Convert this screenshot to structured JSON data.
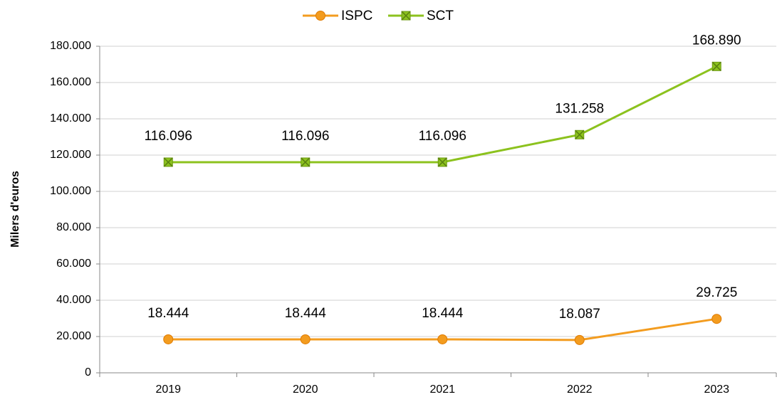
{
  "chart_data": {
    "type": "line",
    "y_label": "Milers d'euros",
    "categories": [
      "2019",
      "2020",
      "2021",
      "2022",
      "2023"
    ],
    "series": [
      {
        "name": "ISPC",
        "color": "#f39c1f",
        "marker": "circle",
        "values": [
          18444,
          18444,
          18444,
          18087,
          29725
        ],
        "value_labels": [
          "18.444",
          "18.444",
          "18.444",
          "18.087",
          "29.725"
        ]
      },
      {
        "name": "SCT",
        "color": "#8cc21e",
        "marker": "square-x",
        "values": [
          116096,
          116096,
          116096,
          131258,
          168890
        ],
        "value_labels": [
          "116.096",
          "116.096",
          "116.096",
          "131.258",
          "168.890"
        ]
      }
    ],
    "ylim": [
      0,
      180000
    ],
    "yticks": [
      0,
      {
        "value": 20000,
        "label": "20.000"
      },
      {
        "value": 40000,
        "label": "40.000"
      },
      {
        "value": 60000,
        "label": "60.000"
      },
      {
        "value": 80000,
        "label": "80.000"
      },
      {
        "value": 100000,
        "label": "100.000"
      },
      {
        "value": 120000,
        "label": "120.000"
      },
      {
        "value": 140000,
        "label": "140.000"
      },
      {
        "value": 160000,
        "label": "160.000"
      },
      {
        "value": 180000,
        "label": "180.000"
      }
    ],
    "grid": true,
    "legend": "top"
  }
}
